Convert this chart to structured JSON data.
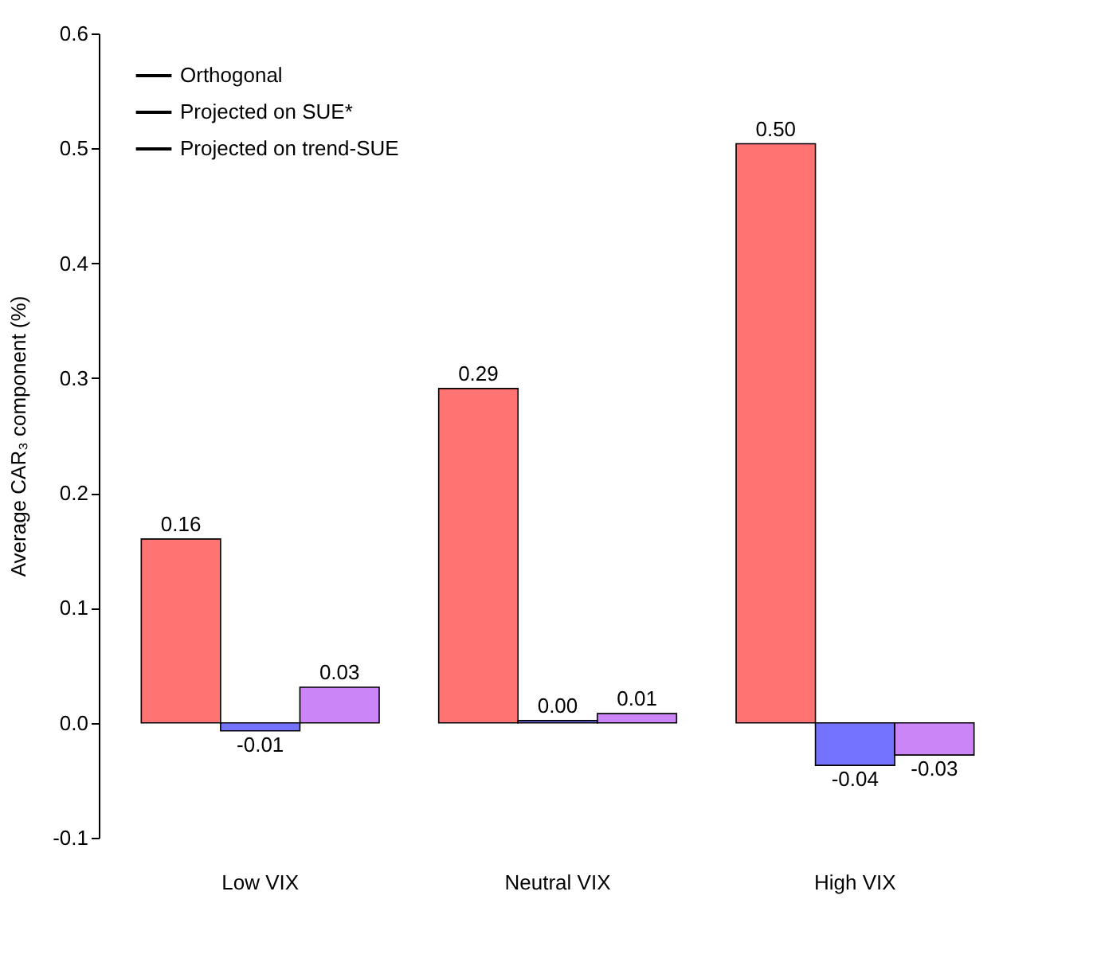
{
  "chart_data": {
    "type": "bar",
    "ylabel": "Average CAR₃ component (%)",
    "categories": [
      "Low VIX",
      "Neutral VIX",
      "High VIX"
    ],
    "series": [
      {
        "name": "Orthogonal",
        "color": "#ff0000",
        "values": [
          0.16,
          0.291,
          0.504
        ],
        "value_labels": [
          "0.16",
          "0.29",
          "0.50"
        ]
      },
      {
        "name": "Projected on SUE*",
        "color": "#0000ff",
        "values": [
          -0.007,
          0.002,
          -0.037
        ],
        "value_labels": [
          "-0.01",
          "0.00",
          "-0.04"
        ]
      },
      {
        "name": "Projected on trend-SUE",
        "color": "#a020f0",
        "values": [
          0.031,
          0.008,
          -0.028
        ],
        "value_labels": [
          "0.03",
          "0.01",
          "-0.03"
        ]
      }
    ],
    "ylim": [
      -0.1,
      0.6
    ],
    "yticks": [
      -0.1,
      {
        "value": 0,
        "label": "0.0"
      },
      0.1,
      0.2,
      0.3,
      0.4,
      0.5,
      0.6
    ],
    "grid": false,
    "legend": "top left"
  }
}
